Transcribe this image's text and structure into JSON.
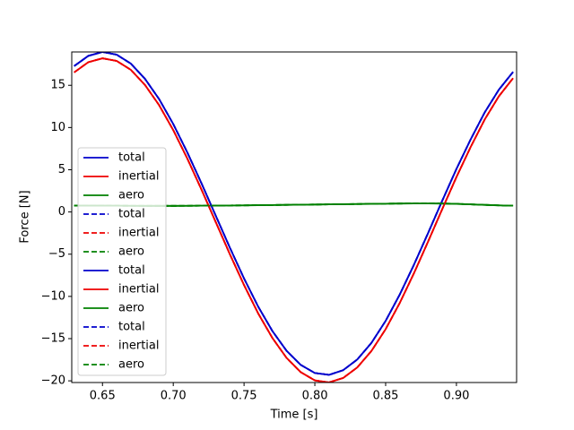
{
  "chart_data": {
    "type": "line",
    "xlabel": "Time [s]",
    "ylabel": "Force [N]",
    "x": [
      0.63,
      0.64,
      0.65,
      0.66,
      0.67,
      0.68,
      0.69,
      0.7,
      0.71,
      0.72,
      0.73,
      0.74,
      0.75,
      0.76,
      0.77,
      0.78,
      0.79,
      0.8,
      0.81,
      0.82,
      0.83,
      0.84,
      0.85,
      0.86,
      0.87,
      0.88,
      0.89,
      0.9,
      0.91,
      0.92,
      0.93,
      0.94
    ],
    "series": [
      {
        "name": "total",
        "color": "#0000cc",
        "linestyle": "solid",
        "values": [
          17.28,
          18.49,
          18.95,
          18.63,
          17.57,
          15.77,
          13.37,
          10.41,
          7.03,
          3.37,
          -0.44,
          -4.24,
          -7.88,
          -11.22,
          -14.1,
          -16.44,
          -18.11,
          -19.07,
          -19.29,
          -18.74,
          -17.47,
          -15.5,
          -12.9,
          -9.77,
          -6.25,
          -2.49,
          1.34,
          5.09,
          8.58,
          11.8,
          14.49,
          16.58
        ]
      },
      {
        "name": "inertial",
        "color": "#ee0000",
        "linestyle": "solid",
        "values": [
          16.53,
          17.74,
          18.2,
          17.89,
          16.84,
          15.05,
          12.65,
          9.69,
          6.3,
          2.63,
          -1.19,
          -5.01,
          -8.66,
          -12.02,
          -14.92,
          -17.28,
          -18.97,
          -19.95,
          -20.19,
          -19.66,
          -18.41,
          -16.46,
          -13.88,
          -10.77,
          -7.26,
          -3.5,
          0.34,
          4.13,
          7.68,
          10.96,
          13.71,
          15.84
        ]
      },
      {
        "name": "aero",
        "color": "#008000",
        "linestyle": "solid",
        "values": [
          0.75,
          0.75,
          0.75,
          0.74,
          0.73,
          0.72,
          0.72,
          0.72,
          0.73,
          0.74,
          0.75,
          0.77,
          0.78,
          0.8,
          0.82,
          0.84,
          0.86,
          0.88,
          0.9,
          0.92,
          0.94,
          0.96,
          0.98,
          1.0,
          1.01,
          1.01,
          1.0,
          0.96,
          0.9,
          0.84,
          0.78,
          0.74
        ]
      },
      {
        "name": "total",
        "color": "#0000cc",
        "linestyle": "dashed",
        "values": [
          17.28,
          18.49,
          18.95,
          18.63,
          17.57,
          15.77,
          13.37,
          10.41,
          7.03,
          3.37,
          -0.44,
          -4.24,
          -7.88,
          -11.22,
          -14.1,
          -16.44,
          -18.11,
          -19.07,
          -19.29,
          -18.74,
          -17.47,
          -15.5,
          -12.9,
          -9.77,
          -6.25,
          -2.49,
          1.34,
          5.09,
          8.58,
          11.8,
          14.49,
          16.58
        ]
      },
      {
        "name": "inertial",
        "color": "#ee0000",
        "linestyle": "dashed",
        "values": [
          16.53,
          17.74,
          18.2,
          17.89,
          16.84,
          15.05,
          12.65,
          9.69,
          6.3,
          2.63,
          -1.19,
          -5.01,
          -8.66,
          -12.02,
          -14.92,
          -17.28,
          -18.97,
          -19.95,
          -20.19,
          -19.66,
          -18.41,
          -16.46,
          -13.88,
          -10.77,
          -7.26,
          -3.5,
          0.34,
          4.13,
          7.68,
          10.96,
          13.71,
          15.84
        ]
      },
      {
        "name": "aero",
        "color": "#008000",
        "linestyle": "dashed",
        "values": [
          0.75,
          0.75,
          0.75,
          0.74,
          0.73,
          0.72,
          0.72,
          0.72,
          0.73,
          0.74,
          0.75,
          0.77,
          0.78,
          0.8,
          0.82,
          0.84,
          0.86,
          0.88,
          0.9,
          0.92,
          0.94,
          0.96,
          0.98,
          1.0,
          1.01,
          1.01,
          1.0,
          0.96,
          0.9,
          0.84,
          0.78,
          0.74
        ]
      },
      {
        "name": "total",
        "color": "#0000cc",
        "linestyle": "solid",
        "values": [
          17.28,
          18.49,
          18.95,
          18.63,
          17.57,
          15.77,
          13.37,
          10.41,
          7.03,
          3.37,
          -0.44,
          -4.24,
          -7.88,
          -11.22,
          -14.1,
          -16.44,
          -18.11,
          -19.07,
          -19.29,
          -18.74,
          -17.47,
          -15.5,
          -12.9,
          -9.77,
          -6.25,
          -2.49,
          1.34,
          5.09,
          8.58,
          11.8,
          14.49,
          16.58
        ]
      },
      {
        "name": "inertial",
        "color": "#ee0000",
        "linestyle": "solid",
        "values": [
          16.53,
          17.74,
          18.2,
          17.89,
          16.84,
          15.05,
          12.65,
          9.69,
          6.3,
          2.63,
          -1.19,
          -5.01,
          -8.66,
          -12.02,
          -14.92,
          -17.28,
          -18.97,
          -19.95,
          -20.19,
          -19.66,
          -18.41,
          -16.46,
          -13.88,
          -10.77,
          -7.26,
          -3.5,
          0.34,
          4.13,
          7.68,
          10.96,
          13.71,
          15.84
        ]
      },
      {
        "name": "aero",
        "color": "#008000",
        "linestyle": "solid",
        "values": [
          0.75,
          0.75,
          0.75,
          0.74,
          0.73,
          0.72,
          0.72,
          0.72,
          0.73,
          0.74,
          0.75,
          0.77,
          0.78,
          0.8,
          0.82,
          0.84,
          0.86,
          0.88,
          0.9,
          0.92,
          0.94,
          0.96,
          0.98,
          1.0,
          1.01,
          1.01,
          1.0,
          0.96,
          0.9,
          0.84,
          0.78,
          0.74
        ]
      },
      {
        "name": "total",
        "color": "#0000cc",
        "linestyle": "dashed",
        "values": [
          17.28,
          18.49,
          18.95,
          18.63,
          17.57,
          15.77,
          13.37,
          10.41,
          7.03,
          3.37,
          -0.44,
          -4.24,
          -7.88,
          -11.22,
          -14.1,
          -16.44,
          -18.11,
          -19.07,
          -19.29,
          -18.74,
          -17.47,
          -15.5,
          -12.9,
          -9.77,
          -6.25,
          -2.49,
          1.34,
          5.09,
          8.58,
          11.8,
          14.49,
          16.58
        ]
      },
      {
        "name": "inertial",
        "color": "#ee0000",
        "linestyle": "dashed",
        "values": [
          16.53,
          17.74,
          18.2,
          17.89,
          16.84,
          15.05,
          12.65,
          9.69,
          6.3,
          2.63,
          -1.19,
          -5.01,
          -8.66,
          -12.02,
          -14.92,
          -17.28,
          -18.97,
          -19.95,
          -20.19,
          -19.66,
          -18.41,
          -16.46,
          -13.88,
          -10.77,
          -7.26,
          -3.5,
          0.34,
          4.13,
          7.68,
          10.96,
          13.71,
          15.84
        ]
      },
      {
        "name": "aero",
        "color": "#008000",
        "linestyle": "dashed",
        "values": [
          0.75,
          0.75,
          0.75,
          0.74,
          0.73,
          0.72,
          0.72,
          0.72,
          0.73,
          0.74,
          0.75,
          0.77,
          0.78,
          0.8,
          0.82,
          0.84,
          0.86,
          0.88,
          0.9,
          0.92,
          0.94,
          0.96,
          0.98,
          1.0,
          1.01,
          1.01,
          1.0,
          0.96,
          0.9,
          0.84,
          0.78,
          0.74
        ]
      }
    ],
    "xlim": [
      0.6283,
      0.9425
    ],
    "xticks": [
      0.65,
      {
        "value": 0.7,
        "label": "0.70"
      },
      0.75,
      {
        "value": 0.8,
        "label": "0.80"
      },
      0.85,
      {
        "value": 0.9,
        "label": "0.90"
      }
    ],
    "ylim": [
      -20.2,
      18.95
    ],
    "yticks": [
      {
        "value": -20,
        "label": "−20"
      },
      {
        "value": -15,
        "label": "−15"
      },
      {
        "value": -10,
        "label": "−10"
      },
      {
        "value": -5,
        "label": "−5"
      },
      0,
      5,
      10,
      15
    ],
    "grid": false,
    "legend": "left"
  }
}
